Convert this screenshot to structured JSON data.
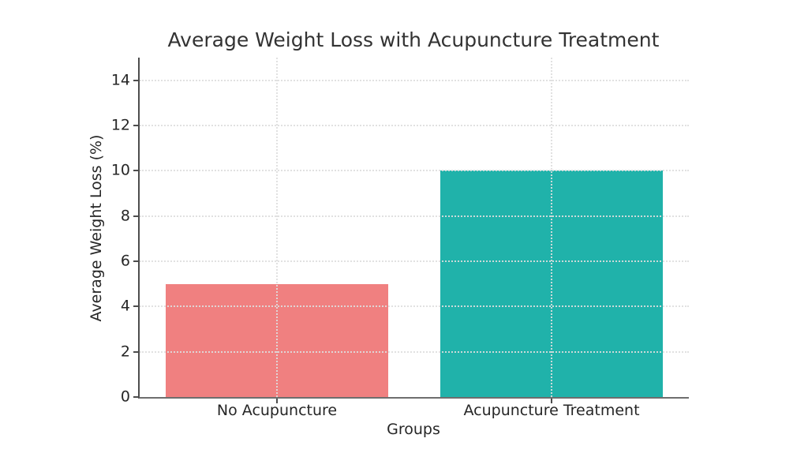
{
  "chart_data": {
    "type": "bar",
    "title": "Average Weight Loss with Acupuncture Treatment",
    "xlabel": "Groups",
    "ylabel": "Average Weight Loss (%)",
    "categories": [
      "No Acupuncture",
      "Acupuncture Treatment"
    ],
    "values": [
      5,
      10
    ],
    "bar_colors": [
      "#F08080",
      "#20B2AA"
    ],
    "yticks": [
      0,
      2,
      4,
      6,
      8,
      10,
      12,
      14
    ],
    "ylim": [
      0,
      15
    ],
    "bar_width_fraction": 0.405,
    "grid": "dotted, horizontal at y-ticks and vertical at bar centers, drawn above bars",
    "legend_position": "none"
  },
  "style": {
    "background_color": "#ffffff",
    "grid_color": "#dedede",
    "axis_color": "#4d4d4d",
    "text_color": "#262626",
    "title_color": "#333333"
  }
}
